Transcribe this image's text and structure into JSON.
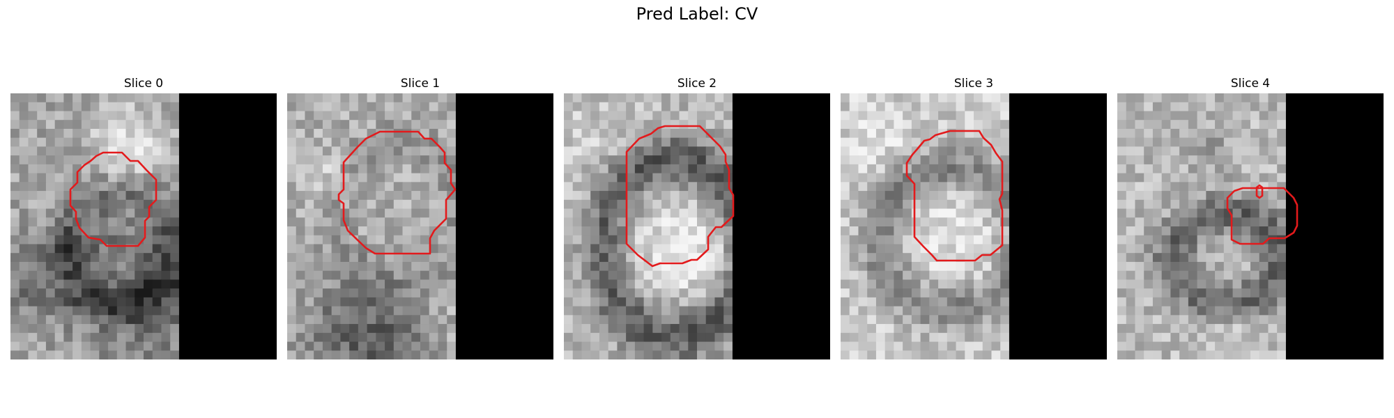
{
  "figure": {
    "title": "Pred Label: CV",
    "colors": {
      "contour": "#e31a1c",
      "mask": "#000000"
    },
    "slices": [
      {
        "title": "Slice 0"
      },
      {
        "title": "Slice 1"
      },
      {
        "title": "Slice 2"
      },
      {
        "title": "Slice 3"
      },
      {
        "title": "Slice 4"
      }
    ]
  }
}
